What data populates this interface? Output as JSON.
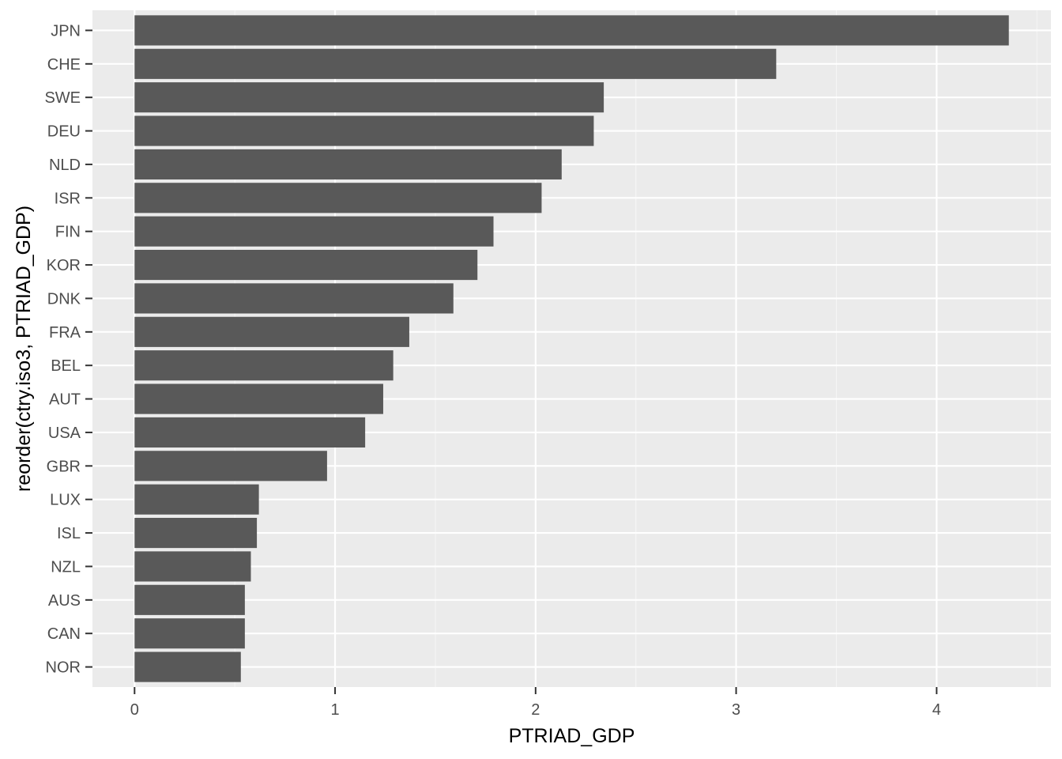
{
  "colors": {
    "panel_background": "#ebebeb",
    "grid_major": "#ffffff",
    "grid_minor": "#f5f5f5",
    "bar_fill": "#595959",
    "tick_mark": "#333333",
    "tick_text": "#4d4d4d",
    "axis_title": "#000000"
  },
  "chart_data": {
    "type": "bar",
    "orientation": "horizontal",
    "xlabel": "PTRIAD_GDP",
    "ylabel": "reorder(ctry.iso3, PTRIAD_GDP)",
    "xlim": [
      -0.21,
      4.57
    ],
    "x_ticks": [
      0,
      1,
      2,
      3,
      4
    ],
    "x_minor_ticks": [
      0.5,
      1.5,
      2.5,
      3.5,
      4.5
    ],
    "grid": true,
    "categories": [
      "JPN",
      "CHE",
      "SWE",
      "DEU",
      "NLD",
      "ISR",
      "FIN",
      "KOR",
      "DNK",
      "FRA",
      "BEL",
      "AUT",
      "USA",
      "GBR",
      "LUX",
      "ISL",
      "NZL",
      "AUS",
      "CAN",
      "NOR"
    ],
    "values": [
      4.36,
      3.2,
      2.34,
      2.29,
      2.13,
      2.03,
      1.79,
      1.71,
      1.59,
      1.37,
      1.29,
      1.24,
      1.15,
      0.96,
      0.62,
      0.61,
      0.58,
      0.55,
      0.55,
      0.53
    ]
  }
}
